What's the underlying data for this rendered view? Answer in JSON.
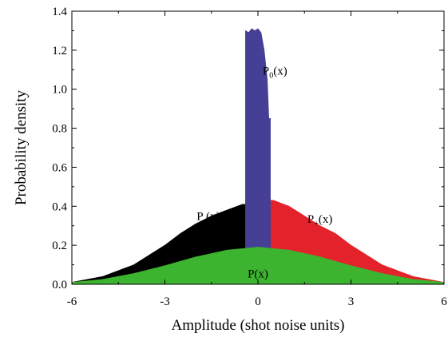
{
  "chart_data": {
    "type": "area",
    "xlabel": "Amplitude (shot noise units)",
    "ylabel": "Probability density",
    "xlim": [
      -6,
      6
    ],
    "ylim": [
      0,
      1.4
    ],
    "xticks": [
      -6,
      -3,
      0,
      3,
      6
    ],
    "yticks": [
      0.0,
      0.2,
      0.4,
      0.6,
      0.8,
      1.0,
      1.2,
      1.4
    ],
    "xtick_labels": [
      "-6",
      "-3",
      "0",
      "3",
      "6"
    ],
    "ytick_labels": [
      "0.0",
      "0.2",
      "0.4",
      "0.6",
      "0.8",
      "1.0",
      "1.2",
      "1.4"
    ],
    "grid": false,
    "series": [
      {
        "name": "P-(x)",
        "label_main": "P",
        "label_sub": "-",
        "label_tail": "(x)",
        "color": "#000000",
        "x": [
          -6.0,
          -5.0,
          -4.0,
          -3.0,
          -2.5,
          -2.0,
          -1.5,
          -1.0,
          -0.5,
          -0.4
        ],
        "y": [
          0.01,
          0.04,
          0.1,
          0.2,
          0.26,
          0.31,
          0.35,
          0.38,
          0.41,
          0.41
        ]
      },
      {
        "name": "P+(x)",
        "label_main": "P",
        "label_sub": "+",
        "label_tail": "(x)",
        "color": "#e3222b",
        "x": [
          0.4,
          0.5,
          1.0,
          1.5,
          2.0,
          2.5,
          3.0,
          4.0,
          5.0,
          6.0
        ],
        "y": [
          0.43,
          0.43,
          0.4,
          0.35,
          0.3,
          0.26,
          0.2,
          0.1,
          0.04,
          0.01
        ]
      },
      {
        "name": "P0(x)",
        "label_main": "P",
        "label_sub": "0",
        "label_tail": "(x)",
        "color": "#463f96",
        "x": [
          -0.4,
          -0.3,
          -0.2,
          -0.1,
          0.0,
          0.1,
          0.2,
          0.3,
          0.35,
          0.4
        ],
        "y": [
          1.3,
          1.29,
          1.31,
          1.3,
          1.31,
          1.29,
          1.2,
          1.05,
          0.85,
          0.85
        ]
      },
      {
        "name": "P(x)",
        "label_main": "P(x)",
        "label_sub": "",
        "label_tail": "",
        "color": "#3db42f",
        "x": [
          -6.0,
          -5.0,
          -4.0,
          -3.0,
          -2.0,
          -1.0,
          0.0,
          1.0,
          2.0,
          3.0,
          4.0,
          5.0,
          6.0
        ],
        "y": [
          0.01,
          0.025,
          0.055,
          0.095,
          0.14,
          0.175,
          0.19,
          0.175,
          0.14,
          0.095,
          0.055,
          0.025,
          0.01
        ]
      }
    ]
  }
}
